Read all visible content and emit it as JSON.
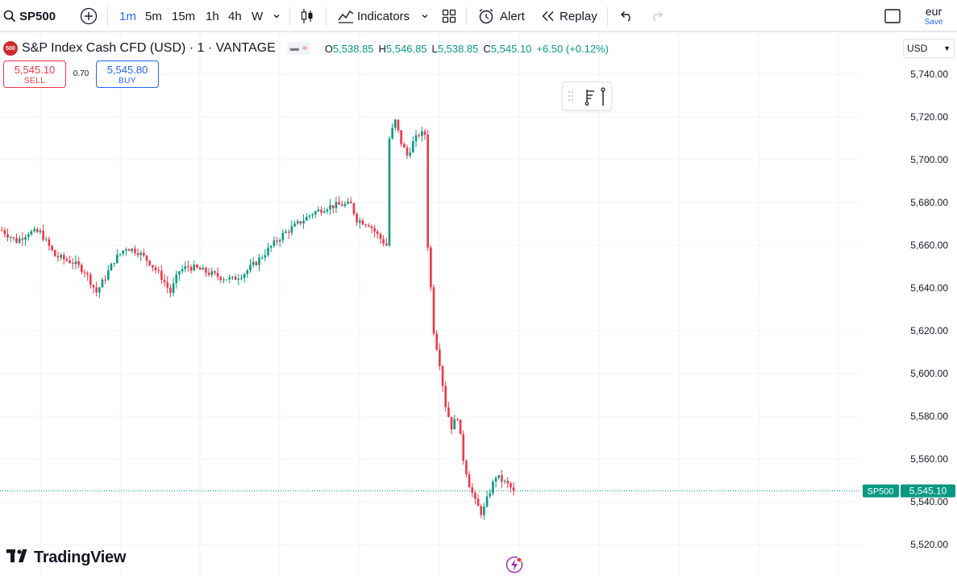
{
  "toolbar": {
    "symbol": "SP500",
    "intervals": [
      "1m",
      "5m",
      "15m",
      "1h",
      "4h",
      "W"
    ],
    "active_interval": "1m",
    "indicators_label": "Indicators",
    "alert_label": "Alert",
    "replay_label": "Replay",
    "user": "eur",
    "save_label": "Save",
    "icons": [
      "search-icon",
      "add-symbol-icon",
      "chevron-down-icon",
      "candle-style-icon",
      "indicators-icon",
      "templates-icon",
      "alert-clock-icon",
      "replay-icon",
      "undo-icon",
      "redo-icon",
      "fullscreen-icon"
    ]
  },
  "legend": {
    "logo_text": "500",
    "title": "S&P Index Cash CFD (USD) · 1 · VANTAGE",
    "btn_left": "▬",
    "btn_right": "≈",
    "o_label": "O",
    "o_value": "5,538.85",
    "h_label": "H",
    "h_value": "5,546.85",
    "l_label": "L",
    "l_value": "5,538.85",
    "c_label": "C",
    "c_value": "5,545.10",
    "change": "+6.50 (+0.12%)"
  },
  "trade": {
    "sell_price": "5,545.10",
    "sell_label": "SELL",
    "spread": "0.70",
    "buy_price": "5,545.80",
    "buy_label": "BUY"
  },
  "currency": "USD",
  "brand": "TradingView",
  "colors": {
    "up": "#089981",
    "down": "#f23645",
    "grid": "#f0f3fa",
    "price_line": "#089981",
    "accent": "#2962ff"
  },
  "chart_data": {
    "type": "candlestick",
    "title": "S&P Index Cash CFD (USD) · 1 · VANTAGE",
    "xlabel": "",
    "ylabel": "",
    "ylim": [
      5512,
      5753
    ],
    "y_ticks": [
      5520,
      5540,
      5560,
      5580,
      5600,
      5620,
      5640,
      5660,
      5680,
      5700,
      5720,
      5740
    ],
    "y_tick_labels": [
      "5,520.00",
      "5,540.00",
      "5,560.00",
      "5,580.00",
      "5,600.00",
      "5,620.00",
      "5,640.00",
      "5,660.00",
      "5,680.00",
      "5,700.00",
      "5,720.00",
      "5,740.00"
    ],
    "last_price": 5545.1,
    "last_price_label": "5,545.10",
    "last_price_series": "SP500",
    "grid": true,
    "anchors": [
      [
        0,
        5667
      ],
      [
        5,
        5662
      ],
      [
        9,
        5666
      ],
      [
        13,
        5666
      ],
      [
        18,
        5655
      ],
      [
        24,
        5652
      ],
      [
        28,
        5648
      ],
      [
        32,
        5638
      ],
      [
        35,
        5645
      ],
      [
        38,
        5653
      ],
      [
        42,
        5659
      ],
      [
        46,
        5657
      ],
      [
        50,
        5652
      ],
      [
        54,
        5645
      ],
      [
        57,
        5638
      ],
      [
        60,
        5648
      ],
      [
        63,
        5650
      ],
      [
        66,
        5649
      ],
      [
        70,
        5647
      ],
      [
        74,
        5645
      ],
      [
        78,
        5644
      ],
      [
        82,
        5647
      ],
      [
        86,
        5652
      ],
      [
        90,
        5658
      ],
      [
        95,
        5665
      ],
      [
        100,
        5670
      ],
      [
        105,
        5675
      ],
      [
        110,
        5678
      ],
      [
        115,
        5679
      ],
      [
        118,
        5679
      ],
      [
        120,
        5672
      ],
      [
        124,
        5670
      ],
      [
        128,
        5663
      ],
      [
        130,
        5660
      ],
      [
        131,
        5710
      ],
      [
        133,
        5718
      ],
      [
        135,
        5708
      ],
      [
        137,
        5702
      ],
      [
        139,
        5708
      ],
      [
        141,
        5712
      ],
      [
        143,
        5712
      ],
      [
        144,
        5660
      ],
      [
        146,
        5620
      ],
      [
        148,
        5605
      ],
      [
        150,
        5585
      ],
      [
        152,
        5575
      ],
      [
        154,
        5580
      ],
      [
        156,
        5560
      ],
      [
        158,
        5548
      ],
      [
        160,
        5540
      ],
      [
        162,
        5535
      ],
      [
        163,
        5537
      ],
      [
        165,
        5545
      ],
      [
        167,
        5552
      ],
      [
        169,
        5550
      ],
      [
        171,
        5548
      ],
      [
        173,
        5545
      ]
    ]
  }
}
